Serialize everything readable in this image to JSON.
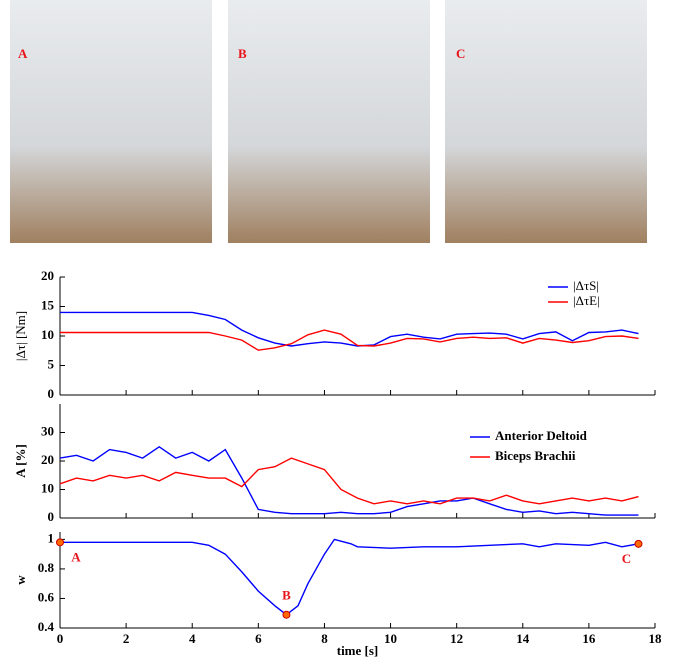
{
  "photos": {
    "labels": [
      "A",
      "B",
      "C"
    ]
  },
  "chart_data": [
    {
      "type": "line",
      "ylabel": "|Δτ| [Nm]",
      "xlim": [
        0,
        18
      ],
      "ylim": [
        0,
        20
      ],
      "yticks": [
        0,
        5,
        10,
        15,
        20
      ],
      "legend": "upper right",
      "x": [
        0,
        0.5,
        1,
        1.5,
        2,
        2.5,
        3,
        3.5,
        4,
        4.5,
        5,
        5.5,
        6,
        6.5,
        7,
        7.5,
        8,
        8.5,
        9,
        9.5,
        10,
        10.5,
        11,
        11.5,
        12,
        12.5,
        13,
        13.5,
        14,
        14.5,
        15,
        15.5,
        16,
        16.5,
        17,
        17.5
      ],
      "series": [
        {
          "name": "|ΔτS|",
          "color": "#0000ff",
          "values": [
            14,
            14,
            14,
            14,
            14,
            14,
            14,
            14,
            14,
            13.5,
            12.8,
            11,
            9.7,
            8.8,
            8.3,
            8.7,
            9,
            8.8,
            8.3,
            8.5,
            9.9,
            10.3,
            9.8,
            9.5,
            10.3,
            10.4,
            10.5,
            10.3,
            9.5,
            10.4,
            10.7,
            9.2,
            10.6,
            10.7,
            11,
            10.4
          ]
        },
        {
          "name": "|ΔτE|",
          "color": "#ff0000",
          "values": [
            10.6,
            10.6,
            10.6,
            10.6,
            10.6,
            10.6,
            10.6,
            10.6,
            10.6,
            10.6,
            10,
            9.3,
            7.6,
            8,
            8.7,
            10.2,
            11,
            10.3,
            8.4,
            8.3,
            8.8,
            9.6,
            9.5,
            9,
            9.6,
            9.8,
            9.6,
            9.7,
            8.8,
            9.6,
            9.3,
            8.9,
            9.2,
            9.9,
            10,
            9.6
          ]
        }
      ]
    },
    {
      "type": "line",
      "ylabel": "A [%]",
      "xlim": [
        0,
        18
      ],
      "ylim": [
        0,
        40
      ],
      "yticks": [
        0,
        10,
        20,
        30
      ],
      "legend": "upper right",
      "x": [
        0,
        0.5,
        1,
        1.5,
        2,
        2.5,
        3,
        3.5,
        4,
        4.5,
        5,
        5.5,
        6,
        6.5,
        7,
        7.5,
        8,
        8.5,
        9,
        9.5,
        10,
        10.5,
        11,
        11.5,
        12,
        12.5,
        13,
        13.5,
        14,
        14.5,
        15,
        15.5,
        16,
        16.5,
        17,
        17.5
      ],
      "series": [
        {
          "name": "Anterior Deltoid",
          "color": "#0000ff",
          "values": [
            21,
            22,
            20,
            24,
            23,
            21,
            25,
            21,
            23,
            20,
            24,
            14,
            3,
            2,
            1.5,
            1.5,
            1.5,
            2,
            1.5,
            1.5,
            2,
            4,
            5,
            6,
            6,
            7,
            5,
            3,
            2,
            2.5,
            1.5,
            2,
            1.5,
            1,
            1,
            1
          ]
        },
        {
          "name": "Biceps Brachii",
          "color": "#ff0000",
          "values": [
            12,
            14,
            13,
            15,
            14,
            15,
            13,
            16,
            15,
            14,
            14,
            11,
            17,
            18,
            21,
            19,
            17,
            10,
            7,
            5,
            6,
            5,
            6,
            5,
            7,
            7,
            6,
            8,
            6,
            5,
            6,
            7,
            6,
            7,
            6,
            7.5
          ]
        }
      ]
    },
    {
      "type": "line",
      "ylabel": "w",
      "xlabel": "time [s]",
      "xlim": [
        0,
        18
      ],
      "xticks": [
        0,
        2,
        4,
        6,
        8,
        10,
        12,
        14,
        16,
        18
      ],
      "ylim": [
        0.4,
        1.05
      ],
      "yticks": [
        0.4,
        0.6,
        0.8,
        1
      ],
      "x": [
        0,
        1,
        2,
        3,
        4,
        4.5,
        5,
        5.5,
        6,
        6.5,
        6.85,
        7.2,
        7.5,
        8,
        8.3,
        8.8,
        9,
        10,
        11,
        12,
        13,
        14,
        14.5,
        15,
        16,
        16.5,
        17,
        17.5
      ],
      "series": [
        {
          "color": "#0000ff",
          "values": [
            0.98,
            0.98,
            0.98,
            0.98,
            0.98,
            0.96,
            0.9,
            0.78,
            0.65,
            0.55,
            0.49,
            0.55,
            0.7,
            0.9,
            1.0,
            0.97,
            0.95,
            0.94,
            0.95,
            0.95,
            0.96,
            0.97,
            0.95,
            0.97,
            0.96,
            0.98,
            0.95,
            0.97
          ]
        }
      ],
      "annotations": [
        {
          "label": "A",
          "x": 0,
          "y": 0.98
        },
        {
          "label": "B",
          "x": 6.85,
          "y": 0.49
        },
        {
          "label": "C",
          "x": 17.5,
          "y": 0.97
        }
      ]
    }
  ]
}
